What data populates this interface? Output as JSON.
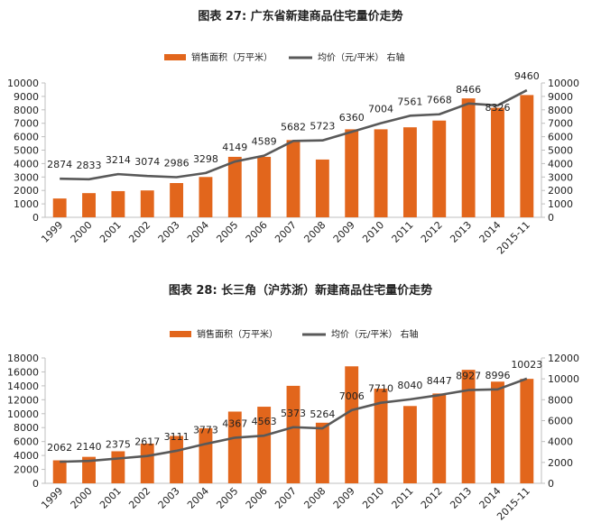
{
  "colors": {
    "bar": "#E2661C",
    "line": "#595959",
    "axis": "#BFBFBF",
    "text": "#222222"
  },
  "chart_data": [
    {
      "type": "bar+line",
      "title": "图表 27: 广东省新建商品住宅量价走势",
      "legend": {
        "bar_label": "销售面积（万平米）",
        "line_label": "均价（元/平米） 右轴",
        "position": "top-center"
      },
      "categories": [
        "1999",
        "2000",
        "2001",
        "2002",
        "2003",
        "2004",
        "2005",
        "2006",
        "2007",
        "2008",
        "2009",
        "2010",
        "2011",
        "2012",
        "2013",
        "2014",
        "2015-11"
      ],
      "bar_values": [
        1400,
        1800,
        1950,
        2000,
        2550,
        3000,
        4500,
        4500,
        5750,
        4300,
        6550,
        6550,
        6700,
        7200,
        8850,
        8150,
        9100
      ],
      "line_values": [
        2874,
        2833,
        3214,
        3074,
        2986,
        3298,
        4149,
        4589,
        5682,
        5723,
        6360,
        7004,
        7561,
        7668,
        8466,
        8326,
        9460
      ],
      "line_labels": [
        "2874",
        "2833",
        "3214",
        "3074",
        "2986",
        "3298",
        "4149",
        "4589",
        "5682",
        "5723",
        "6360",
        "7004",
        "7561",
        "7668",
        "8466",
        "8326",
        "9460"
      ],
      "y_left": {
        "min": 0,
        "max": 10000,
        "ticks": [
          "0",
          "1000",
          "2000",
          "3000",
          "4000",
          "5000",
          "6000",
          "7000",
          "8000",
          "9000",
          "10000"
        ]
      },
      "y_right": {
        "min": 0,
        "max": 10000,
        "ticks": [
          "0",
          "1000",
          "2000",
          "3000",
          "4000",
          "5000",
          "6000",
          "7000",
          "8000",
          "9000",
          "10000"
        ]
      }
    },
    {
      "type": "bar+line",
      "title": "图表 28: 长三角（沪苏浙）新建商品住宅量价走势",
      "legend": {
        "bar_label": "销售面积（万平米）",
        "line_label": "均价（元/平米） 右轴",
        "position": "top-center"
      },
      "categories": [
        "1999",
        "2000",
        "2001",
        "2002",
        "2003",
        "2004",
        "2005",
        "2006",
        "2007",
        "2008",
        "2009",
        "2010",
        "2011",
        "2012",
        "2013",
        "2014",
        "2015-11"
      ],
      "bar_values": [
        3300,
        3800,
        4600,
        5700,
        6800,
        7900,
        10300,
        11000,
        14000,
        8700,
        16800,
        13600,
        11100,
        12900,
        16300,
        14600,
        15000
      ],
      "line_values": [
        2062,
        2140,
        2375,
        2617,
        3111,
        3773,
        4367,
        4563,
        5373,
        5264,
        7006,
        7710,
        8040,
        8447,
        8927,
        8996,
        10023
      ],
      "line_labels": [
        "2062",
        "2140",
        "2375",
        "2617",
        "3111",
        "3773",
        "4367",
        "4563",
        "5373",
        "5264",
        "7006",
        "7710",
        "8040",
        "8447",
        "8927",
        "8996",
        "10023"
      ],
      "y_left": {
        "min": 0,
        "max": 18000,
        "ticks": [
          "0",
          "2000",
          "4000",
          "6000",
          "8000",
          "10000",
          "12000",
          "14000",
          "16000",
          "18000"
        ]
      },
      "y_right": {
        "min": 0,
        "max": 12000,
        "ticks": [
          "0",
          "2000",
          "4000",
          "6000",
          "8000",
          "10000",
          "12000"
        ]
      }
    }
  ]
}
